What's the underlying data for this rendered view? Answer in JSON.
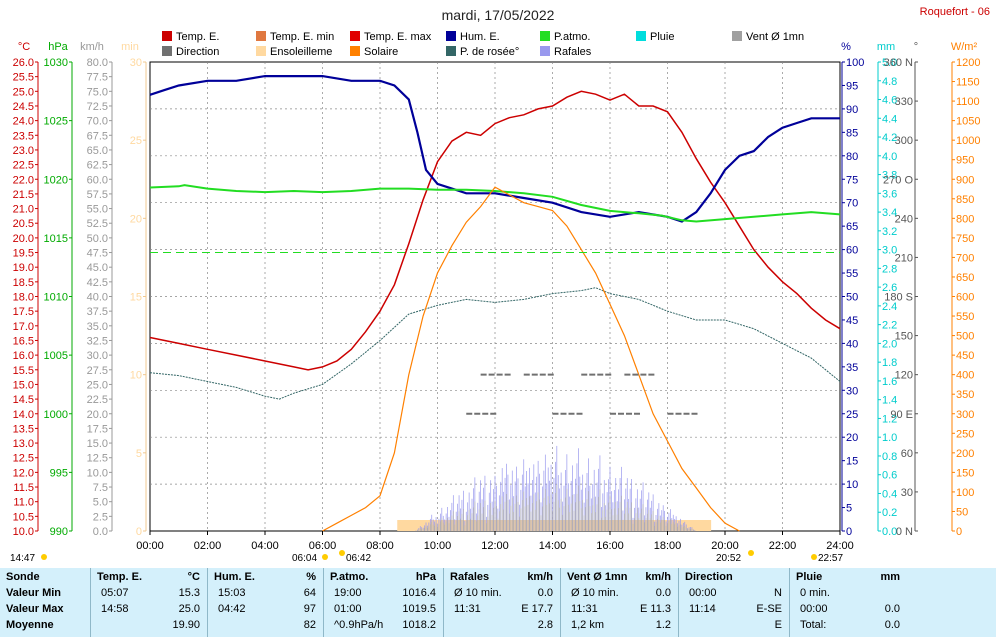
{
  "chart_data": {
    "type": "line",
    "title": "mardi, 17/05/2022",
    "station": "Roquefort - 06",
    "legend": [
      {
        "label": "Temp. E.",
        "color": "#cc0000"
      },
      {
        "label": "Temp. E. min",
        "color": "#e07840"
      },
      {
        "label": "Temp. E. max",
        "color": "#e00000"
      },
      {
        "label": "Hum. E.",
        "color": "#000099"
      },
      {
        "label": "P.atmo.",
        "color": "#22dd22"
      },
      {
        "label": "Pluie",
        "color": "#00dddd"
      },
      {
        "label": "Vent Ø 1mn",
        "color": "#a0a0a0"
      },
      {
        "label": "Direction",
        "color": "#707070"
      },
      {
        "label": "Ensoleilleme",
        "color": "#ffd9a0"
      },
      {
        "label": "Solaire",
        "color": "#ff8000"
      },
      {
        "label": "P. de rosée°",
        "color": "#336666"
      },
      {
        "label": "Rafales",
        "color": "#9999ee"
      }
    ],
    "x_ticks": [
      "00:00",
      "02:00",
      "04:00",
      "06:00",
      "08:00",
      "10:00",
      "12:00",
      "14:00",
      "16:00",
      "18:00",
      "20:00",
      "22:00",
      "24:00"
    ],
    "axes": {
      "temp": {
        "unit": "°C",
        "min": 10,
        "max": 26,
        "color": "#cc0000"
      },
      "pressure": {
        "unit": "hPa",
        "min": 990,
        "max": 1030,
        "color": "#00aa00"
      },
      "wind": {
        "unit": "km/h",
        "min": 0,
        "max": 80,
        "color": "#999999"
      },
      "sun": {
        "unit": "min",
        "min": 0,
        "max": 30,
        "color": "#ffd9a0"
      },
      "humidity": {
        "unit": "%",
        "min": 0,
        "max": 100,
        "color": "#000099"
      },
      "rain": {
        "unit": "mm",
        "min": 0,
        "max": 5,
        "color": "#00cccc"
      },
      "direction": {
        "unit": "°",
        "ticks": [
          "0 N",
          "30",
          "60",
          "90 E",
          "120",
          "150",
          "180 S",
          "210",
          "240",
          "270 O",
          "300",
          "330",
          "360 N"
        ],
        "color": "#555555"
      },
      "solar": {
        "unit": "W/m²",
        "min": 0,
        "max": 1200,
        "color": "#ff8000"
      }
    },
    "series": [
      {
        "name": "Temp. E.",
        "axis": "temp",
        "points": [
          [
            0,
            16.6
          ],
          [
            1,
            16.4
          ],
          [
            2,
            16.2
          ],
          [
            3,
            16.0
          ],
          [
            4,
            15.8
          ],
          [
            5,
            15.6
          ],
          [
            5.5,
            15.5
          ],
          [
            6,
            15.6
          ],
          [
            6.5,
            15.8
          ],
          [
            7,
            16.2
          ],
          [
            7.5,
            16.8
          ],
          [
            8,
            17.5
          ],
          [
            8.5,
            18.4
          ],
          [
            9,
            19.8
          ],
          [
            9.5,
            21.3
          ],
          [
            10,
            22.6
          ],
          [
            10.5,
            23.3
          ],
          [
            11,
            23.6
          ],
          [
            11.5,
            23.5
          ],
          [
            12,
            23.9
          ],
          [
            12.5,
            24.1
          ],
          [
            13,
            24.2
          ],
          [
            13.5,
            24.4
          ],
          [
            14,
            24.5
          ],
          [
            14.5,
            24.8
          ],
          [
            15,
            25.0
          ],
          [
            15.5,
            24.9
          ],
          [
            16,
            24.7
          ],
          [
            16.5,
            24.9
          ],
          [
            17,
            24.5
          ],
          [
            17.5,
            24.5
          ],
          [
            18,
            24.3
          ],
          [
            18.5,
            23.6
          ],
          [
            19,
            22.7
          ],
          [
            19.5,
            21.9
          ],
          [
            20,
            21.2
          ],
          [
            20.5,
            20.4
          ],
          [
            21,
            19.6
          ],
          [
            21.5,
            19.0
          ],
          [
            22,
            18.5
          ],
          [
            22.5,
            18.1
          ],
          [
            23,
            17.6
          ],
          [
            23.5,
            17.2
          ],
          [
            24,
            16.9
          ]
        ]
      },
      {
        "name": "Hum. E.",
        "axis": "humidity",
        "points": [
          [
            0,
            93
          ],
          [
            0.5,
            94
          ],
          [
            1,
            95
          ],
          [
            2,
            96
          ],
          [
            3,
            96
          ],
          [
            4,
            97
          ],
          [
            5,
            97
          ],
          [
            6,
            97
          ],
          [
            7,
            96
          ],
          [
            8,
            96
          ],
          [
            8.5,
            95
          ],
          [
            9,
            92
          ],
          [
            9.3,
            85
          ],
          [
            9.6,
            77
          ],
          [
            10,
            74
          ],
          [
            10.5,
            73
          ],
          [
            11,
            72
          ],
          [
            11.5,
            72
          ],
          [
            12,
            72
          ],
          [
            13,
            71
          ],
          [
            14,
            70
          ],
          [
            15,
            68
          ],
          [
            16,
            67
          ],
          [
            17,
            68
          ],
          [
            18,
            67
          ],
          [
            18.5,
            66
          ],
          [
            19,
            68
          ],
          [
            19.5,
            72
          ],
          [
            20,
            77
          ],
          [
            20.5,
            80
          ],
          [
            21,
            81
          ],
          [
            21.5,
            84
          ],
          [
            22,
            86
          ],
          [
            22.5,
            87
          ],
          [
            23,
            88
          ],
          [
            24,
            88
          ]
        ]
      },
      {
        "name": "P.atmo.",
        "axis": "pressure",
        "points": [
          [
            0,
            1019.3
          ],
          [
            1,
            1019.4
          ],
          [
            1.2,
            1019.5
          ],
          [
            2,
            1019.2
          ],
          [
            3,
            1019.0
          ],
          [
            4,
            1018.9
          ],
          [
            5,
            1019.0
          ],
          [
            6,
            1018.9
          ],
          [
            7,
            1019.0
          ],
          [
            8,
            1019.2
          ],
          [
            9,
            1019.2
          ],
          [
            10,
            1019.1
          ],
          [
            11,
            1019.1
          ],
          [
            12,
            1019.0
          ],
          [
            13,
            1018.8
          ],
          [
            14,
            1018.5
          ],
          [
            15,
            1017.8
          ],
          [
            16,
            1017.3
          ],
          [
            17,
            1017.1
          ],
          [
            17.8,
            1016.9
          ],
          [
            18.5,
            1016.5
          ],
          [
            19,
            1016.4
          ],
          [
            20,
            1016.6
          ],
          [
            21,
            1016.8
          ],
          [
            22,
            1017.0
          ],
          [
            23,
            1017.2
          ],
          [
            24,
            1017.0
          ]
        ]
      },
      {
        "name": "P. de rosée°",
        "axis": "temp",
        "points": [
          [
            0,
            15.4
          ],
          [
            1,
            15.3
          ],
          [
            2,
            15.1
          ],
          [
            3,
            14.9
          ],
          [
            4,
            14.6
          ],
          [
            4.5,
            14.5
          ],
          [
            5,
            14.7
          ],
          [
            6,
            15.0
          ],
          [
            7,
            15.7
          ],
          [
            8,
            16.5
          ],
          [
            9,
            17.4
          ],
          [
            10,
            17.7
          ],
          [
            11,
            17.9
          ],
          [
            12,
            17.8
          ],
          [
            13,
            17.9
          ],
          [
            14,
            18.1
          ],
          [
            15,
            18.2
          ],
          [
            15.5,
            18.3
          ],
          [
            16,
            18.1
          ],
          [
            17,
            17.9
          ],
          [
            18,
            17.5
          ],
          [
            19,
            17.2
          ],
          [
            20,
            17.2
          ],
          [
            21,
            16.9
          ],
          [
            22,
            16.4
          ],
          [
            23,
            15.9
          ],
          [
            24,
            15.1
          ]
        ]
      },
      {
        "name": "Solaire",
        "axis": "solar",
        "points": [
          [
            6.0,
            0
          ],
          [
            6.5,
            20
          ],
          [
            7,
            40
          ],
          [
            7.5,
            60
          ],
          [
            8,
            90
          ],
          [
            8.5,
            200
          ],
          [
            9,
            400
          ],
          [
            9.5,
            550
          ],
          [
            10,
            660
          ],
          [
            10.5,
            730
          ],
          [
            11,
            790
          ],
          [
            11.5,
            830
          ],
          [
            12,
            880
          ],
          [
            12.5,
            860
          ],
          [
            13,
            840
          ],
          [
            13.5,
            830
          ],
          [
            14,
            820
          ],
          [
            14.5,
            780
          ],
          [
            15,
            720
          ],
          [
            15.5,
            660
          ],
          [
            16,
            580
          ],
          [
            16.5,
            500
          ],
          [
            17,
            400
          ],
          [
            17.5,
            300
          ],
          [
            18,
            230
          ],
          [
            18.5,
            160
          ],
          [
            19,
            110
          ],
          [
            19.5,
            60
          ],
          [
            20,
            20
          ],
          [
            20.5,
            0
          ]
        ]
      },
      {
        "name": "Direction",
        "axis": "direction",
        "points": [
          [
            11,
            90
          ],
          [
            14,
            90
          ],
          [
            16,
            90
          ],
          [
            18,
            90
          ],
          [
            11.5,
            120
          ],
          [
            13,
            120
          ],
          [
            15,
            120
          ],
          [
            16.5,
            120
          ]
        ]
      }
    ],
    "horizontal_reference": {
      "axis": "temp",
      "value": 19.5
    }
  },
  "axis_labels": {
    "left": [
      "°C",
      "hPa",
      "km/h",
      "min"
    ],
    "right": [
      "%",
      "mm",
      "°",
      "W/m²"
    ]
  },
  "events": {
    "sunrise_left": "14:47",
    "sunrise_a": "06:04",
    "sunrise_b": "06:42",
    "sunset_a": "20:52",
    "sunset_b": "22:57"
  },
  "stats": {
    "columns": [
      {
        "header": "Sonde",
        "unit": "",
        "rows": [
          "Valeur Min",
          "Valeur Max",
          "Moyenne"
        ]
      },
      {
        "header": "Temp. E.",
        "unit": "°C",
        "time": [
          "05:07",
          "14:58",
          ""
        ],
        "value": [
          "15.3",
          "25.0",
          "19.90"
        ]
      },
      {
        "header": "Hum. E.",
        "unit": "%",
        "time": [
          "15:03",
          "04:42",
          ""
        ],
        "value": [
          "64",
          "97",
          "82"
        ]
      },
      {
        "header": "P.atmo.",
        "unit": "hPa",
        "time": [
          "19:00",
          "01:00",
          "^0.9hPa/h"
        ],
        "value": [
          "1016.4",
          "1019.5",
          "1018.2"
        ]
      },
      {
        "header": "Rafales",
        "unit": "km/h",
        "time": [
          "Ø 10 min.",
          "11:31",
          ""
        ],
        "value": [
          "0.0",
          "E 17.7",
          "2.8"
        ]
      },
      {
        "header": "Vent Ø 1mn",
        "unit": "km/h",
        "time": [
          "Ø 10 min.",
          "11:31",
          "1,2 km"
        ],
        "value": [
          "0.0",
          "E 11.3",
          "1.2"
        ]
      },
      {
        "header": "Direction",
        "unit": "",
        "time": [
          "00:00",
          "11:14",
          ""
        ],
        "value": [
          "N",
          "E-SE",
          "E"
        ]
      },
      {
        "header": "Pluie",
        "unit": "mm",
        "time": [
          "0 min.",
          "00:00",
          "Total:"
        ],
        "value": [
          "",
          "0.0",
          "0.0"
        ]
      }
    ]
  }
}
